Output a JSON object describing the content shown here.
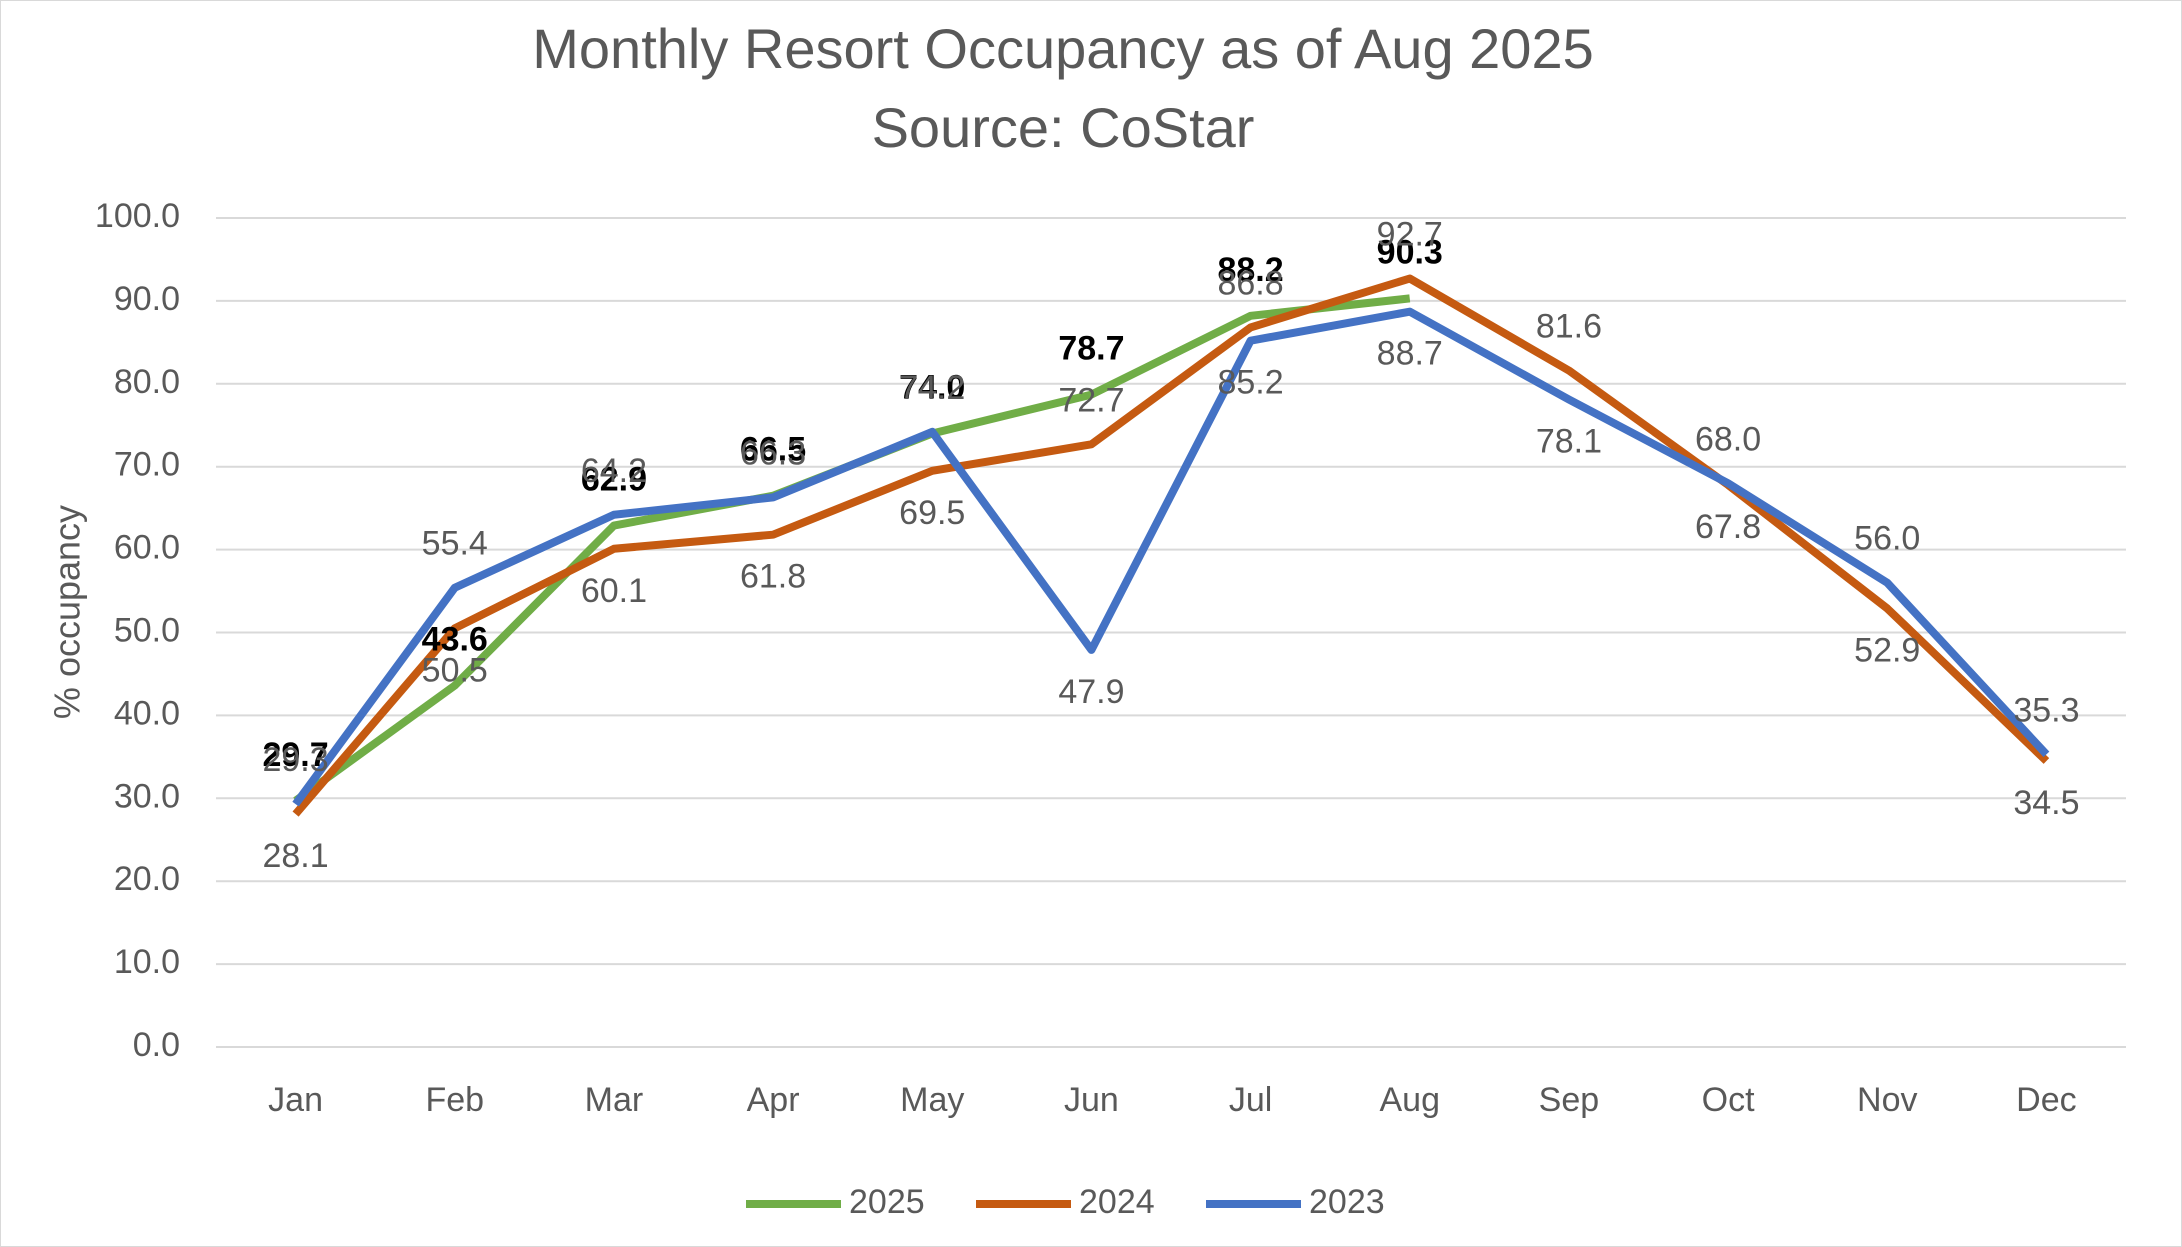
{
  "chart_data": {
    "type": "line",
    "title": "Monthly Resort Occupancy as of Aug 2025",
    "subtitle": "Source: CoStar",
    "y_label": "% occupancy",
    "categories": [
      "Jan",
      "Feb",
      "Mar",
      "Apr",
      "May",
      "Jun",
      "Jul",
      "Aug",
      "Sep",
      "Oct",
      "Nov",
      "Dec"
    ],
    "series": [
      {
        "name": "2025",
        "color": "#70ad47",
        "values": [
          29.7,
          43.6,
          62.9,
          66.5,
          74.0,
          78.7,
          88.2,
          90.3,
          null,
          null,
          null,
          null
        ],
        "value_labels": [
          "29.7",
          "43.6",
          "62.9",
          "66.5",
          "74.0",
          "78.7",
          "88.2",
          "90.3",
          null,
          null,
          null,
          null
        ]
      },
      {
        "name": "2024",
        "color": "#c55a11",
        "values": [
          28.1,
          50.5,
          60.1,
          61.8,
          69.5,
          72.7,
          86.8,
          92.7,
          81.6,
          67.8,
          52.9,
          34.5
        ],
        "value_labels": [
          "28.1",
          "50.5",
          "60.1",
          "61.8",
          "69.5",
          "72.7",
          "86.8",
          "92.7",
          "81.6",
          "67.8",
          "52.9",
          "34.5"
        ]
      },
      {
        "name": "2023",
        "color": "#4472c4",
        "values": [
          29.3,
          55.4,
          64.2,
          66.3,
          74.2,
          47.9,
          85.2,
          88.7,
          78.1,
          68.0,
          56.0,
          35.3
        ],
        "value_labels": [
          "29.3",
          "55.4",
          "64.2",
          "66.3",
          "74.2",
          "47.9",
          "85.2",
          "88.7",
          "78.1",
          "68.0",
          "56.0",
          "35.3"
        ]
      }
    ],
    "ylim": [
      0,
      100
    ],
    "yticks": [
      {
        "value": 0,
        "label": "0.0"
      },
      {
        "value": 10,
        "label": "10.0"
      },
      {
        "value": 20,
        "label": "20.0"
      },
      {
        "value": 30,
        "label": "30.0"
      },
      {
        "value": 40,
        "label": "40.0"
      },
      {
        "value": 50,
        "label": "50.0"
      },
      {
        "value": 60,
        "label": "60.0"
      },
      {
        "value": 70,
        "label": "70.0"
      },
      {
        "value": 80,
        "label": "80.0"
      },
      {
        "value": 90,
        "label": "90.0"
      },
      {
        "value": 100,
        "label": "100.0"
      }
    ],
    "grid": true,
    "legend": "bottom"
  }
}
